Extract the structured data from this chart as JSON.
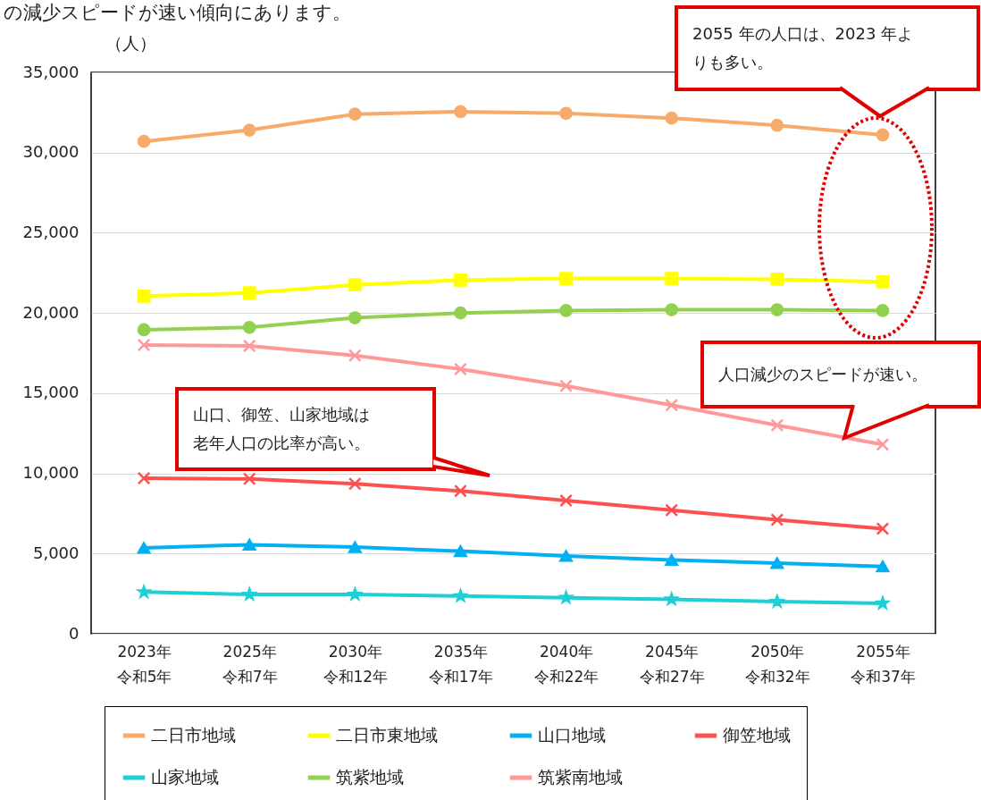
{
  "chart_data": {
    "type": "line",
    "ylabel": "（人）",
    "categories": [
      "2023年令和5年",
      "2025年令和7年",
      "2030年令和12年",
      "2035年令和17年",
      "2040年令和22年",
      "2045年令和27年",
      "2050年令和32年",
      "2055年令和37年"
    ],
    "series": [
      {
        "name": "二日市地域",
        "color": "#f7ab6a",
        "marker": "circle",
        "values": [
          30700,
          31400,
          32400,
          32550,
          32450,
          32150,
          31700,
          31100
        ]
      },
      {
        "name": "二日市東地域",
        "color": "#ffff00",
        "marker": "square",
        "values": [
          21050,
          21250,
          21750,
          22050,
          22150,
          22150,
          22100,
          21950
        ]
      },
      {
        "name": "山口地域",
        "color": "#00b0f0",
        "marker": "triangle",
        "values": [
          5350,
          5550,
          5400,
          5150,
          4850,
          4600,
          4400,
          4200
        ]
      },
      {
        "name": "御笠地域",
        "color": "#ff5050",
        "marker": "cross",
        "values": [
          9700,
          9650,
          9350,
          8900,
          8300,
          7700,
          7100,
          6550
        ]
      },
      {
        "name": "山家地域",
        "color": "#1fcfd6",
        "marker": "star",
        "values": [
          2600,
          2450,
          2450,
          2350,
          2250,
          2150,
          2000,
          1900
        ]
      },
      {
        "name": "筑紫地域",
        "color": "#92d050",
        "marker": "circle",
        "values": [
          18950,
          19100,
          19700,
          20000,
          20150,
          20200,
          20200,
          20150
        ]
      },
      {
        "name": "筑紫南地域",
        "color": "#ff9999",
        "marker": "cross",
        "values": [
          18000,
          17950,
          17350,
          16500,
          15450,
          14250,
          13000,
          11800
        ]
      }
    ],
    "ylim": [
      0,
      35000
    ],
    "yticks": [
      0,
      {
        "value": 5000,
        "label": "5,000"
      },
      {
        "value": 10000,
        "label": "10,000"
      },
      {
        "value": 15000,
        "label": "15,000"
      },
      {
        "value": 20000,
        "label": "20,000"
      },
      {
        "value": 25000,
        "label": "25,000"
      },
      {
        "value": 30000,
        "label": "30,000"
      },
      {
        "value": 35000,
        "label": "35,000"
      }
    ],
    "grid": "y",
    "legend": "bottom",
    "line_style": "solid",
    "annotations": [
      "の減少スピードが速い傾向にあります。",
      "2055 年の人口は、2023 年よりも多い。",
      "人口減少のスピードが速い。",
      "山口、御笠、山家地域は老年人口の比率が高い。"
    ]
  }
}
